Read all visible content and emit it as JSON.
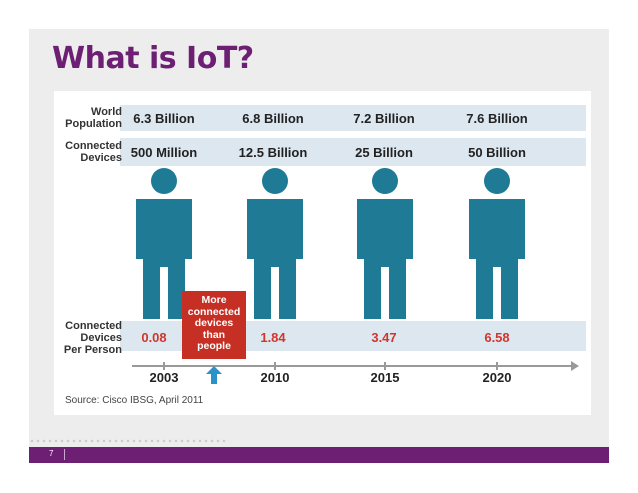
{
  "slide": {
    "title": "What is IoT?",
    "page_number": "7",
    "brand_color": "#6d1f73"
  },
  "infographic": {
    "rows": {
      "world_population_label": [
        "World",
        "Population"
      ],
      "connected_devices_label": [
        "Connected",
        "Devices"
      ],
      "per_person_label": [
        "Connected",
        "Devices",
        "Per Person"
      ]
    },
    "columns": [
      {
        "year": "2003",
        "world_population": "6.3 Billion",
        "connected_devices": "500 Million",
        "devices_per_person": "0.08"
      },
      {
        "year": "2010",
        "world_population": "6.8 Billion",
        "connected_devices": "12.5 Billion",
        "devices_per_person": "1.84"
      },
      {
        "year": "2015",
        "world_population": "7.2 Billion",
        "connected_devices": "25 Billion",
        "devices_per_person": "3.47"
      },
      {
        "year": "2020",
        "world_population": "7.6 Billion",
        "connected_devices": "50 Billion",
        "devices_per_person": "6.58"
      }
    ],
    "callout": [
      "More",
      "connected",
      "devices",
      "than",
      "people"
    ],
    "source": "Source: Cisco IBSG, April 2011",
    "colors": {
      "person": "#1f7a96",
      "band": "#dce7f0",
      "per_person_value": "#d2352b",
      "callout_bg": "#c62f23",
      "arrow": "#2a92c9"
    },
    "icons": [
      "person-icon",
      "up-arrow-icon"
    ]
  }
}
